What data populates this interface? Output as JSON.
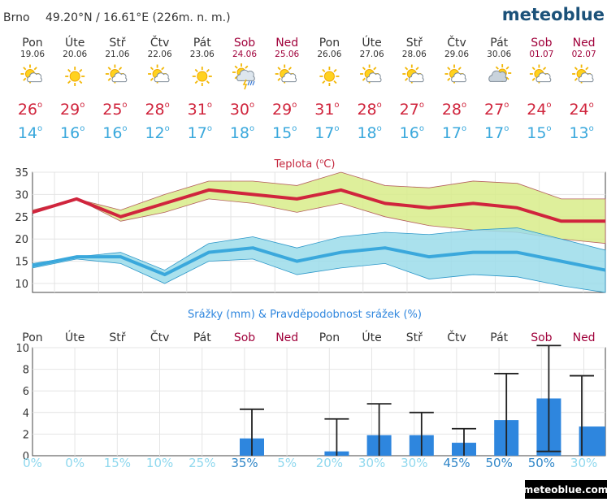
{
  "header": {
    "location": "Brno",
    "coords": "49.20°N / 16.61°E (226m. n. m.)",
    "brand": "meteoblue",
    "footer_brand": "meteoblue.com"
  },
  "days": [
    {
      "name": "Pon",
      "date": "19.06",
      "weekend": false,
      "icon": "sun-cloud-icon"
    },
    {
      "name": "Úte",
      "date": "20.06",
      "weekend": false,
      "icon": "sun-icon"
    },
    {
      "name": "Stř",
      "date": "21.06",
      "weekend": false,
      "icon": "sun-cloud-icon"
    },
    {
      "name": "Čtv",
      "date": "22.06",
      "weekend": false,
      "icon": "sun-cloud-icon"
    },
    {
      "name": "Pát",
      "date": "23.06",
      "weekend": false,
      "icon": "sun-icon"
    },
    {
      "name": "Sob",
      "date": "24.06",
      "weekend": true,
      "icon": "thunder-rain-icon"
    },
    {
      "name": "Ned",
      "date": "25.06",
      "weekend": true,
      "icon": "sun-cloud-icon"
    },
    {
      "name": "Pon",
      "date": "26.06",
      "weekend": false,
      "icon": "sun-icon"
    },
    {
      "name": "Úte",
      "date": "27.06",
      "weekend": false,
      "icon": "sun-cloud-icon"
    },
    {
      "name": "Stř",
      "date": "28.06",
      "weekend": false,
      "icon": "sun-cloud-icon"
    },
    {
      "name": "Čtv",
      "date": "29.06",
      "weekend": false,
      "icon": "sun-cloud-icon"
    },
    {
      "name": "Pát",
      "date": "30.06",
      "weekend": false,
      "icon": "cloud-sun-icon"
    },
    {
      "name": "Sob",
      "date": "01.07",
      "weekend": true,
      "icon": "sun-cloud-icon"
    },
    {
      "name": "Ned",
      "date": "02.07",
      "weekend": true,
      "icon": "sun-cloud-icon"
    }
  ],
  "degree_symbol": "o",
  "colors": {
    "max": "#d0253d",
    "min": "#3aa8dc",
    "weekend": "#a0003a",
    "bar": "#2e86de",
    "band_max": "#d8ec8a",
    "band_min": "#9bdcea",
    "prob_low": "#8fd8ee",
    "prob_high": "#2f86c8"
  },
  "chart_data": [
    {
      "type": "line",
      "title": "Teplota (°C)",
      "title_text": "Teplota (",
      "title_unit": "C)",
      "categories": [
        "Pon",
        "Úte",
        "Stř",
        "Čtv",
        "Pát",
        "Sob",
        "Ned",
        "Pon",
        "Úte",
        "Stř",
        "Čtv",
        "Pát",
        "Sob",
        "Ned"
      ],
      "ylim": [
        8,
        35
      ],
      "yticks": [
        10,
        15,
        20,
        25,
        30,
        35
      ],
      "series": [
        {
          "values": [
            26,
            29,
            25,
            28,
            31,
            30,
            29,
            31,
            28,
            27,
            28,
            27,
            24,
            24
          ],
          "range_high": [
            26.5,
            29,
            26.5,
            30,
            33,
            33,
            32,
            35,
            32,
            31.5,
            33,
            32.5,
            29,
            29
          ],
          "range_low": [
            26,
            29,
            24,
            26,
            29,
            28,
            26,
            28,
            25,
            23,
            22,
            21.5,
            20,
            19
          ]
        },
        {
          "values": [
            14,
            16,
            16,
            12,
            17,
            18,
            15,
            17,
            18,
            16,
            17,
            17,
            15,
            13
          ],
          "range_high": [
            14.5,
            16,
            17,
            13,
            19,
            20.5,
            18,
            20.5,
            21.5,
            21,
            22,
            22.5,
            20,
            17.5
          ],
          "range_low": [
            13.5,
            15.5,
            14.5,
            10,
            15,
            15.5,
            12,
            13.5,
            14.5,
            11,
            12,
            11.5,
            9.5,
            8
          ]
        }
      ]
    },
    {
      "type": "bar",
      "title": "Srážky (mm) & Pravděpodobnost srážek (%)",
      "categories": [
        "Pon",
        "Úte",
        "Stř",
        "Čtv",
        "Pát",
        "Sob",
        "Ned",
        "Pon",
        "Úte",
        "Stř",
        "Čtv",
        "Pát",
        "Sob",
        "Ned"
      ],
      "ylim": [
        0,
        10
      ],
      "yticks": [
        0,
        2,
        4,
        6,
        8,
        10
      ],
      "values": [
        0,
        0,
        0,
        0,
        0,
        1.6,
        0,
        0.4,
        1.9,
        1.9,
        1.2,
        3.3,
        5.3,
        2.7
      ],
      "error_high": [
        0,
        0,
        0,
        0,
        0,
        4.3,
        0,
        3.4,
        4.8,
        4.0,
        2.5,
        7.6,
        10.2,
        7.4
      ],
      "error_low": [
        0,
        0,
        0,
        0,
        0,
        0,
        0,
        0,
        0,
        0,
        0,
        0,
        0.4,
        0
      ],
      "probability": [
        "0%",
        "0%",
        "15%",
        "10%",
        "25%",
        "35%",
        "5%",
        "20%",
        "30%",
        "30%",
        "45%",
        "50%",
        "50%",
        "30%"
      ],
      "probability_values": [
        0,
        0,
        15,
        10,
        25,
        35,
        5,
        20,
        30,
        30,
        45,
        50,
        50,
        30
      ]
    }
  ]
}
